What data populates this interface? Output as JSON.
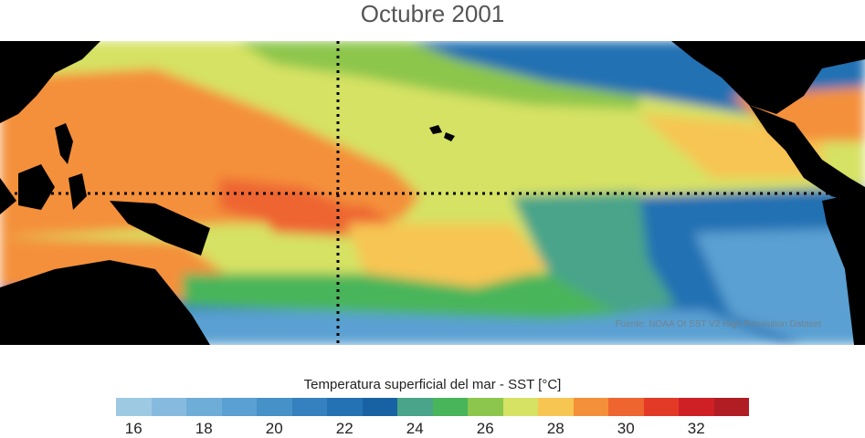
{
  "title": "Octubre 2001",
  "credit": "Fuente: NOAA OI SST V2 High Resolution Dataset",
  "colorbar": {
    "label": "Temperatura superficial del mar - SST  [°C]",
    "colors": [
      "#9ec9e3",
      "#86bbdf",
      "#6fadd9",
      "#5aa0d2",
      "#4791c9",
      "#3581bf",
      "#2471b3",
      "#1862a3",
      "#4aa48a",
      "#48b55a",
      "#8cc64c",
      "#d6e264",
      "#f7c552",
      "#f4903a",
      "#ee6530",
      "#e23a27",
      "#cf2026",
      "#b01e23"
    ],
    "ticks": [
      "16",
      "18",
      "20",
      "22",
      "24",
      "26",
      "28",
      "30",
      "32"
    ],
    "tick_values": [
      16,
      18,
      20,
      22,
      24,
      26,
      28,
      30,
      32
    ],
    "range": [
      15.5,
      33.5
    ]
  },
  "palette": {
    "land": "#000000",
    "cold": "#2471b3",
    "cool": "#5aa0d2",
    "teal": "#4aa48a",
    "green": "#48b55a",
    "lightgreen": "#8cc64c",
    "yellowgreen": "#d6e264",
    "yellow": "#f7c552",
    "orange": "#f4903a",
    "redorange": "#ee6530"
  }
}
